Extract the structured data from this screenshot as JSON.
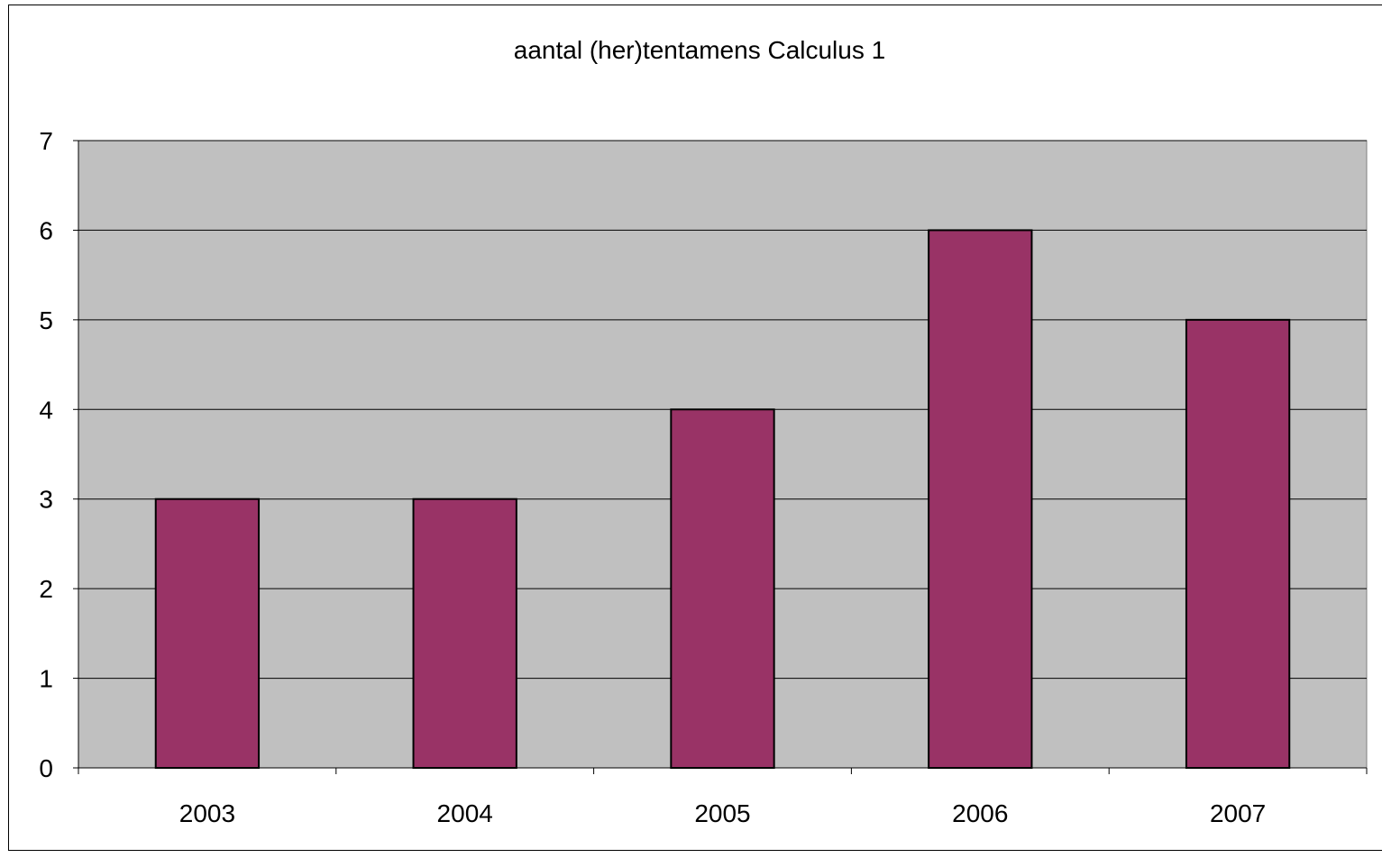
{
  "chart_data": {
    "type": "bar",
    "title": "aantal (her)tentamens Calculus 1",
    "categories": [
      "2003",
      "2004",
      "2005",
      "2006",
      "2007"
    ],
    "values": [
      3,
      3,
      4,
      6,
      5
    ],
    "xlabel": "",
    "ylabel": "",
    "ylim": [
      0,
      7
    ],
    "yticks": [
      "0",
      "1",
      "2",
      "3",
      "4",
      "5",
      "6",
      "7"
    ],
    "grid": true,
    "legend": "none",
    "colors": {
      "bar_fill": "#993366",
      "bar_stroke": "#000000",
      "plot_background": "#c0c0c0",
      "gridline": "#000000"
    }
  }
}
